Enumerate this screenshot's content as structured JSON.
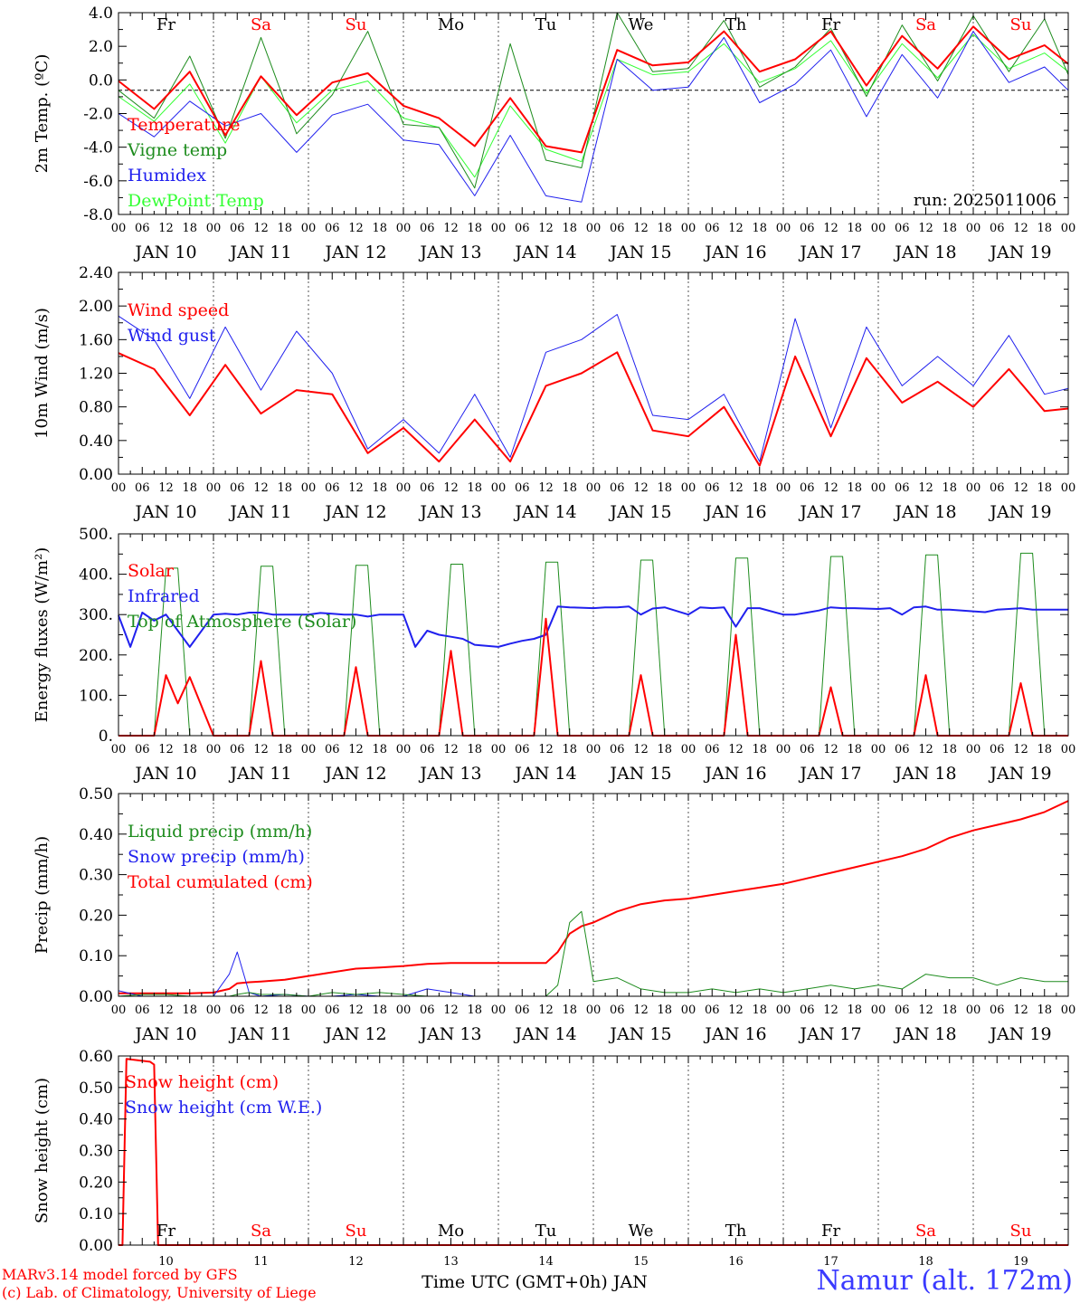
{
  "footer": {
    "model_line": "MARv3.14 model forced by GFS",
    "credit_line": "(c) Lab. of Climatology, University of Liege",
    "time_axis_title": "Time UTC (GMT+0h) JAN",
    "station": "Namur (alt. 172m)"
  },
  "colors": {
    "red": "#ff0000",
    "green": "#1e8c1e",
    "blue": "#2020ee",
    "lightgreen": "#33ff33",
    "gray": "#666666"
  },
  "day_names": [
    "Fr",
    "Sa",
    "Su",
    "Mo",
    "Tu",
    "We",
    "Th",
    "Fr",
    "Sa",
    "Su"
  ],
  "weekend_days": [
    1,
    2,
    8,
    9
  ],
  "date_labels": [
    "JAN 10",
    "JAN 11",
    "JAN 12",
    "JAN 13",
    "JAN 14",
    "JAN 15",
    "JAN 16",
    "JAN 17",
    "JAN 18",
    "JAN 19"
  ],
  "day_numbers": [
    "10",
    "11",
    "12",
    "13",
    "14",
    "15",
    "16",
    "17",
    "18",
    "19"
  ],
  "hour_labels": [
    "00",
    "06",
    "12",
    "18"
  ],
  "chart_data": [
    {
      "type": "line",
      "id": "temp",
      "ylabel": "2m Temp. (ºC)",
      "ylim": [
        -8,
        5
      ],
      "ytick_labels": [
        "-8.0",
        "-6.0",
        "-4.0",
        "-2.0",
        "0.0",
        "2.0",
        "4.0"
      ],
      "annotation": "run: 2025011006",
      "show_day_names": true,
      "x": [
        0,
        9,
        18,
        27,
        36,
        45,
        54,
        63,
        72,
        81,
        90,
        99,
        108,
        117,
        126,
        135,
        144,
        153,
        162,
        171,
        180,
        189,
        198,
        207,
        216,
        225,
        234,
        240
      ],
      "series": [
        {
          "name": "Temperature",
          "color": "red",
          "width": 2,
          "values": [
            0.6,
            -1.2,
            1.2,
            -2.9,
            0.9,
            -1.6,
            0.5,
            1.1,
            -1.0,
            -1.8,
            -3.6,
            -0.5,
            -3.6,
            -4.0,
            2.6,
            1.6,
            1.8,
            3.8,
            1.2,
            2.0,
            3.8,
            0.3,
            3.5,
            1.4,
            4.1,
            2.0,
            2.9,
            1.7
          ]
        },
        {
          "name": "Vigne temp",
          "color": "green",
          "width": 1,
          "values": [
            0.0,
            -1.8,
            2.2,
            -3.1,
            3.4,
            -2.8,
            -0.3,
            3.8,
            -2.2,
            -2.4,
            -6.3,
            3.0,
            -4.5,
            -5.0,
            5.0,
            1.2,
            1.4,
            4.5,
            0.2,
            1.5,
            4.0,
            -0.4,
            4.2,
            0.6,
            4.8,
            1.2,
            4.6,
            1.0
          ]
        },
        {
          "name": "Humidex",
          "color": "blue",
          "width": 1,
          "values": [
            -1.5,
            -3.0,
            -0.7,
            -2.3,
            -1.5,
            -4.0,
            -1.6,
            -0.9,
            -3.2,
            -3.5,
            -6.8,
            -2.9,
            -6.8,
            -7.2,
            2.0,
            0.0,
            0.2,
            3.4,
            -0.8,
            0.4,
            2.6,
            -1.7,
            2.3,
            -0.5,
            3.8,
            0.5,
            1.5,
            0.0
          ]
        },
        {
          "name": "DewPoint Temp",
          "color": "lightgreen",
          "width": 1,
          "values": [
            -0.4,
            -2.0,
            0.4,
            -3.4,
            0.9,
            -2.1,
            0.0,
            0.6,
            -1.8,
            -2.4,
            -5.6,
            -1.0,
            -3.8,
            -4.6,
            2.0,
            1.0,
            1.2,
            3.0,
            0.5,
            1.4,
            3.2,
            -0.2,
            3.0,
            0.8,
            3.6,
            1.4,
            2.4,
            1.2
          ]
        }
      ]
    },
    {
      "type": "line",
      "id": "wind",
      "ylabel": "10m Wind (m/s)",
      "ylim": [
        0,
        2.4
      ],
      "ytick_labels": [
        "0.00",
        "0.40",
        "0.80",
        "1.20",
        "1.60",
        "2.00",
        "2.40"
      ],
      "show_day_names": false,
      "x": [
        0,
        9,
        18,
        27,
        36,
        45,
        54,
        63,
        72,
        81,
        90,
        99,
        108,
        117,
        126,
        135,
        144,
        153,
        162,
        171,
        180,
        189,
        198,
        207,
        216,
        225,
        234,
        240
      ],
      "series": [
        {
          "name": "Wind speed",
          "color": "red",
          "width": 2,
          "values": [
            1.44,
            1.25,
            0.7,
            1.3,
            0.72,
            1.0,
            0.95,
            0.25,
            0.55,
            0.15,
            0.65,
            0.15,
            1.05,
            1.2,
            1.45,
            0.52,
            0.45,
            0.8,
            0.1,
            1.4,
            0.45,
            1.38,
            0.85,
            1.1,
            0.8,
            1.25,
            0.75,
            0.78
          ]
        },
        {
          "name": "Wind gust",
          "color": "blue",
          "width": 1,
          "values": [
            1.88,
            1.6,
            0.9,
            1.75,
            1.0,
            1.7,
            1.2,
            0.3,
            0.65,
            0.25,
            0.95,
            0.2,
            1.45,
            1.6,
            1.9,
            0.7,
            0.65,
            0.95,
            0.15,
            1.85,
            0.55,
            1.75,
            1.05,
            1.4,
            1.05,
            1.65,
            0.95,
            1.02
          ]
        }
      ]
    },
    {
      "type": "line",
      "id": "flux",
      "ylabel": "Energy fluxes (W/m²)",
      "ylim": [
        0,
        500
      ],
      "ytick_labels": [
        "0.",
        "100.",
        "200.",
        "300.",
        "400.",
        "500."
      ],
      "show_day_names": false,
      "x": [
        0,
        3,
        6,
        9,
        12,
        15,
        18,
        24,
        27,
        30,
        33,
        36,
        39,
        42,
        48,
        51,
        54,
        57,
        60,
        63,
        66,
        72,
        75,
        78,
        81,
        84,
        87,
        90,
        96,
        99,
        102,
        105,
        108,
        111,
        114,
        120,
        123,
        126,
        129,
        132,
        135,
        138,
        144,
        147,
        150,
        153,
        156,
        159,
        162,
        168,
        171,
        174,
        177,
        180,
        183,
        186,
        192,
        195,
        198,
        201,
        204,
        207,
        210,
        216,
        219,
        222,
        225,
        228,
        231,
        234,
        240
      ],
      "series": [
        {
          "name": "Solar",
          "color": "red",
          "width": 2,
          "values": [
            0,
            0,
            0,
            0,
            150,
            80,
            145,
            0,
            0,
            0,
            0,
            185,
            0,
            0,
            0,
            0,
            0,
            0,
            170,
            0,
            0,
            0,
            0,
            0,
            0,
            210,
            0,
            0,
            0,
            0,
            0,
            0,
            290,
            0,
            0,
            0,
            0,
            0,
            0,
            150,
            0,
            0,
            0,
            0,
            0,
            0,
            250,
            0,
            0,
            0,
            0,
            0,
            0,
            120,
            0,
            0,
            0,
            0,
            0,
            0,
            150,
            0,
            0,
            0,
            0,
            0,
            0,
            130,
            0,
            0,
            0
          ]
        },
        {
          "name": "Infrared",
          "color": "blue",
          "width": 2,
          "values": [
            298,
            220,
            305,
            285,
            300,
            260,
            220,
            300,
            302,
            300,
            305,
            305,
            300,
            300,
            300,
            304,
            302,
            300,
            300,
            295,
            300,
            300,
            220,
            260,
            250,
            245,
            240,
            225,
            220,
            228,
            235,
            240,
            250,
            320,
            318,
            316,
            318,
            318,
            320,
            300,
            315,
            318,
            300,
            318,
            316,
            318,
            270,
            316,
            316,
            300,
            300,
            305,
            310,
            318,
            316,
            316,
            314,
            316,
            300,
            318,
            320,
            312,
            312,
            308,
            306,
            312,
            314,
            316,
            312,
            312,
            312
          ]
        },
        {
          "name": "Top of Atmosphere (Solar)",
          "color": "green",
          "width": 1,
          "values": [
            0,
            0,
            0,
            0,
            415,
            415,
            0,
            0,
            0,
            0,
            0,
            420,
            420,
            0,
            0,
            0,
            0,
            0,
            422,
            422,
            0,
            0,
            0,
            0,
            0,
            425,
            425,
            0,
            0,
            0,
            0,
            0,
            430,
            430,
            0,
            0,
            0,
            0,
            0,
            435,
            435,
            0,
            0,
            0,
            0,
            0,
            440,
            440,
            0,
            0,
            0,
            0,
            0,
            444,
            444,
            0,
            0,
            0,
            0,
            0,
            448,
            448,
            0,
            0,
            0,
            0,
            0,
            452,
            452,
            0,
            0
          ]
        }
      ]
    },
    {
      "type": "line",
      "id": "precip",
      "ylabel": "Precip (mm/h)",
      "ylim": [
        0,
        0.55
      ],
      "ytick_labels": [
        "0.00",
        "0.10",
        "0.20",
        "0.30",
        "0.40",
        "0.50"
      ],
      "show_day_names": false,
      "x": [
        0,
        6,
        12,
        18,
        24,
        28,
        30,
        33,
        36,
        42,
        48,
        54,
        60,
        66,
        72,
        78,
        84,
        90,
        96,
        102,
        108,
        111,
        114,
        117,
        120,
        126,
        132,
        138,
        144,
        150,
        156,
        162,
        168,
        174,
        180,
        186,
        192,
        198,
        204,
        210,
        216,
        222,
        228,
        234,
        240
      ],
      "series": [
        {
          "name": "Liquid precip (mm/h)",
          "color": "green",
          "width": 1,
          "values": [
            0.0,
            0.005,
            0.005,
            0.0,
            0.0,
            0.0,
            0.005,
            0.01,
            0.005,
            0.005,
            0.0,
            0.01,
            0.005,
            0.01,
            0.005,
            0.0,
            0.0,
            0.0,
            0.0,
            0.0,
            0.0,
            0.03,
            0.2,
            0.23,
            0.04,
            0.05,
            0.02,
            0.01,
            0.01,
            0.02,
            0.01,
            0.02,
            0.01,
            0.02,
            0.03,
            0.02,
            0.03,
            0.02,
            0.06,
            0.05,
            0.05,
            0.03,
            0.05,
            0.04,
            0.04
          ]
        },
        {
          "name": "Snow precip (mm/h)",
          "color": "blue",
          "width": 1,
          "values": [
            0.015,
            0.0,
            0.0,
            0.0,
            0.0,
            0.06,
            0.12,
            0.01,
            0.0,
            0.005,
            0.0,
            0.0,
            0.005,
            0.0,
            0.0,
            0.02,
            0.01,
            0.0,
            0.0,
            0.0,
            0.0,
            0.0,
            0.0,
            0.0,
            0.0,
            0.0,
            0.0,
            0.0,
            0.0,
            0.0,
            0.0,
            0.0,
            0.0,
            0.0,
            0.0,
            0.0,
            0.0,
            0.0,
            0.0,
            0.0,
            0.0,
            0.0,
            0.0,
            0.0,
            0.0
          ]
        },
        {
          "name": "Total cumulated (cm)",
          "color": "red",
          "width": 2,
          "values": [
            0.008,
            0.008,
            0.008,
            0.008,
            0.01,
            0.02,
            0.035,
            0.038,
            0.04,
            0.045,
            0.055,
            0.065,
            0.075,
            0.078,
            0.082,
            0.088,
            0.09,
            0.09,
            0.09,
            0.09,
            0.09,
            0.12,
            0.17,
            0.19,
            0.2,
            0.23,
            0.25,
            0.26,
            0.265,
            0.275,
            0.285,
            0.295,
            0.305,
            0.32,
            0.335,
            0.35,
            0.365,
            0.38,
            0.4,
            0.43,
            0.45,
            0.465,
            0.48,
            0.5,
            0.53
          ]
        }
      ]
    },
    {
      "type": "line",
      "id": "snow",
      "ylabel": "Snow height (cm)",
      "ylim": [
        0,
        0.65
      ],
      "ytick_labels": [
        "0.00",
        "0.10",
        "0.20",
        "0.30",
        "0.40",
        "0.50",
        "0.60"
      ],
      "show_day_names": false,
      "x": [
        0,
        1,
        2,
        8,
        9,
        10,
        240
      ],
      "series": [
        {
          "name": "Snow height (cm)",
          "color": "red",
          "width": 2,
          "values": [
            0,
            0,
            0.64,
            0.63,
            0.62,
            0,
            0
          ]
        },
        {
          "name": "Snow height (cm W.E.)",
          "color": "blue",
          "width": 1,
          "values": [
            0,
            0,
            0,
            0,
            0,
            0,
            0
          ]
        }
      ]
    }
  ]
}
